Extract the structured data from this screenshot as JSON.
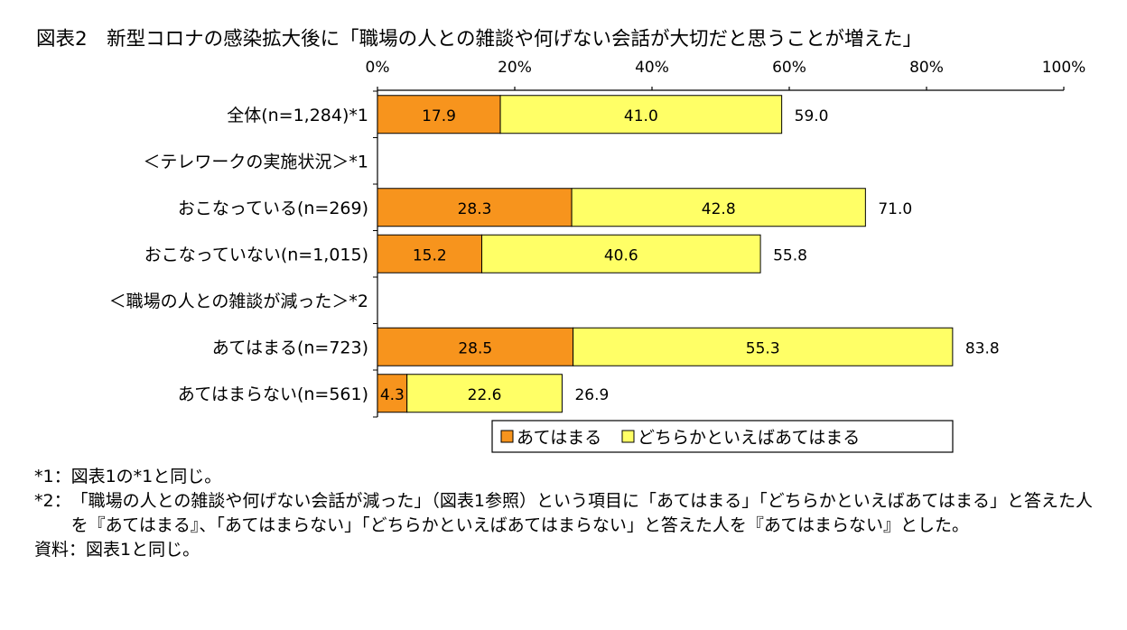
{
  "chart_data": {
    "type": "bar",
    "orientation": "horizontal",
    "stacked": true,
    "title": "図表2　新型コロナの感染拡大後に「職場の人との雑談や何げない会話が大切だと思うことが増えた」",
    "xlim": [
      0,
      100
    ],
    "xticks": [
      "0%",
      "20%",
      "40%",
      "60%",
      "80%",
      "100%"
    ],
    "grid": false,
    "legend_position": "bottom",
    "rows": [
      {
        "label": "全体(n=1,284)*1",
        "kind": "data",
        "values": [
          17.9,
          41.0
        ],
        "value_labels": [
          "17.9",
          "41.0"
        ],
        "total": "59.0"
      },
      {
        "label": "＜テレワークの実施状況＞*1",
        "kind": "header"
      },
      {
        "label": "おこなっている(n=269)",
        "kind": "data",
        "values": [
          28.3,
          42.8
        ],
        "value_labels": [
          "28.3",
          "42.8"
        ],
        "total": "71.0"
      },
      {
        "label": "おこなっていない(n=1,015)",
        "kind": "data",
        "values": [
          15.2,
          40.6
        ],
        "value_labels": [
          "15.2",
          "40.6"
        ],
        "total": "55.8"
      },
      {
        "label": "＜職場の人との雑談が減った＞*2",
        "kind": "header"
      },
      {
        "label": "あてはまる(n=723)",
        "kind": "data",
        "values": [
          28.5,
          55.3
        ],
        "value_labels": [
          "28.5",
          "55.3"
        ],
        "total": "83.8"
      },
      {
        "label": "あてはまらない(n=561)",
        "kind": "data",
        "values": [
          4.3,
          22.6
        ],
        "value_labels": [
          "4.3",
          "22.6"
        ],
        "total": "26.9"
      }
    ],
    "series": [
      {
        "name": "あてはまる",
        "color": "#f7941d"
      },
      {
        "name": "どちらかといえばあてはまる",
        "color": "#ffff66"
      }
    ]
  },
  "footnotes": [
    {
      "mark": "*1：",
      "text": "図表1の*1と同じ。"
    },
    {
      "mark": "*2：",
      "text": "「職場の人との雑談や何げない会話が減った」（図表1参照）という項目に「あてはまる」「どちらかといえばあてはまる」と答えた人を『あてはまる』、「あてはまらない」「どちらかといえばあてはまらない」と答えた人を『あてはまらない』とした。"
    }
  ],
  "source": "資料：図表1と同じ。"
}
